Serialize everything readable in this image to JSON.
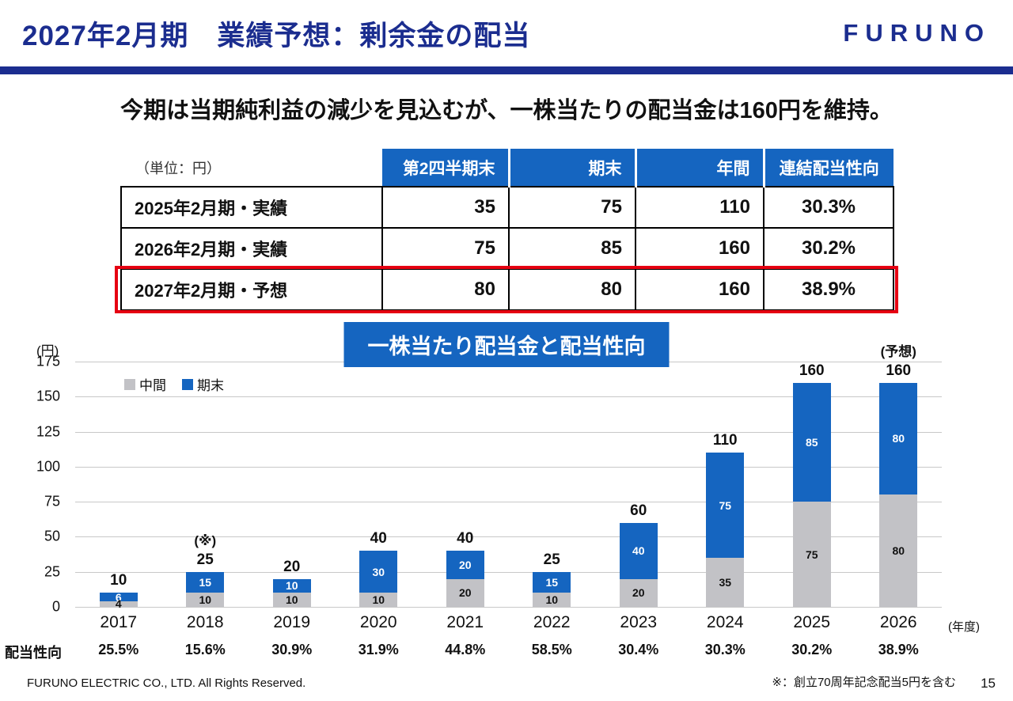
{
  "header": {
    "title": "2027年2月期　業績予想：剰余金の配当",
    "logo": "FURUNO"
  },
  "message": "今期は当期純利益の減少を見込むが、一株当たりの配当金は160円を維持。",
  "table": {
    "unit_label": "（単位：円）",
    "columns": [
      "第2四半期末",
      "期末",
      "年間",
      "連結配当性向"
    ],
    "rows": [
      {
        "label": "2025年2月期・実績",
        "q2": "35",
        "year_end": "75",
        "annual": "110",
        "payout": "30.3%"
      },
      {
        "label": "2026年2月期・実績",
        "q2": "75",
        "year_end": "85",
        "annual": "160",
        "payout": "30.2%"
      },
      {
        "label": "2027年2月期・予想",
        "q2": "80",
        "year_end": "80",
        "annual": "160",
        "payout": "38.9%"
      }
    ]
  },
  "chart_data": {
    "type": "bar",
    "stacked": true,
    "title": "一株当たり配当金と配当性向",
    "ylabel": "(円)",
    "ylim": [
      0,
      175
    ],
    "ytick_interval": 25,
    "grid": true,
    "legend_position": "top-left",
    "categories": [
      "2017",
      "2018",
      "2019",
      "2020",
      "2021",
      "2022",
      "2023",
      "2024",
      "2025",
      "2026"
    ],
    "series": [
      {
        "name": "中間",
        "color": "#c2c2c6",
        "values": [
          4,
          10,
          10,
          10,
          20,
          10,
          20,
          35,
          75,
          80
        ]
      },
      {
        "name": "期末",
        "color": "#1565c0",
        "values": [
          6,
          15,
          10,
          30,
          20,
          15,
          40,
          75,
          85,
          80
        ]
      }
    ],
    "totals": [
      10,
      25,
      20,
      40,
      40,
      25,
      60,
      110,
      160,
      160
    ],
    "bar_annotations": [
      "",
      "(※)",
      "",
      "",
      "",
      "",
      "",
      "",
      "",
      "(予想)"
    ],
    "xaxis_suffix": "(年度)",
    "payout_label": "配当性向",
    "payout_ratios": [
      "25.5%",
      "15.6%",
      "30.9%",
      "31.9%",
      "44.8%",
      "58.5%",
      "30.4%",
      "30.3%",
      "30.2%",
      "38.9%"
    ]
  },
  "footer": {
    "copyright": "FURUNO ELECTRIC CO., LTD. All Rights Reserved.",
    "note": "※：創立70周年記念配当5円を含む",
    "page": "15"
  }
}
